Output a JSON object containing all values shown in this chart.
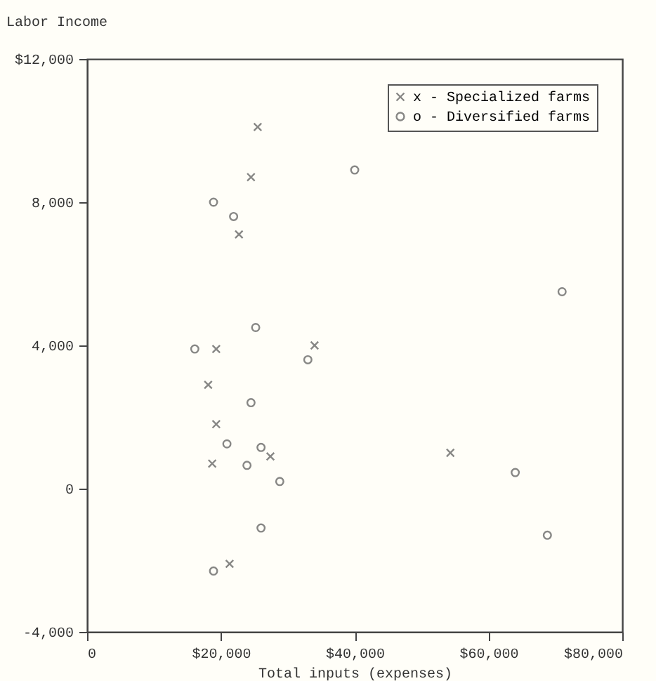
{
  "chart_data": {
    "type": "scatter",
    "xlabel": "Total inputs (expenses)",
    "ylabel": "Labor Income",
    "xlim": [
      0,
      80000
    ],
    "ylim": [
      -4000,
      12000
    ],
    "xticks": [
      0,
      {
        "value": 20000,
        "label": "$20,000"
      },
      {
        "value": 40000,
        "label": "$40,000"
      },
      {
        "value": 60000,
        "label": "$60,000"
      },
      {
        "value": 80000,
        "label": "$80,000"
      }
    ],
    "yticks": [
      {
        "value": -4000,
        "label": "-4,000"
      },
      0,
      {
        "value": 4000,
        "label": "4,000"
      },
      {
        "value": 8000,
        "label": "8,000"
      },
      {
        "value": 12000,
        "label": "$12,000"
      }
    ],
    "grid": false,
    "legend": "top right",
    "series": [
      {
        "name": "x - Specialized farms",
        "color": "#555555",
        "marker": "cross",
        "x": [
          25500,
          24500,
          22700,
          19300,
          34000,
          18100,
          19300,
          18700,
          27400,
          54300,
          21300
        ],
        "values": [
          10100,
          8700,
          7100,
          3900,
          4000,
          2900,
          1800,
          700,
          900,
          1000,
          -2100
        ]
      },
      {
        "name": "o - Diversified farms",
        "color": "#555555",
        "marker": "circle",
        "x": [
          40000,
          18900,
          21900,
          71000,
          25200,
          16100,
          33000,
          24500,
          20900,
          26000,
          23900,
          28800,
          64000,
          26000,
          68800,
          18900
        ],
        "values": [
          8900,
          8000,
          7600,
          5500,
          4500,
          3900,
          3600,
          2400,
          1250,
          1150,
          650,
          200,
          450,
          -1100,
          -1300,
          -2300
        ]
      }
    ]
  }
}
